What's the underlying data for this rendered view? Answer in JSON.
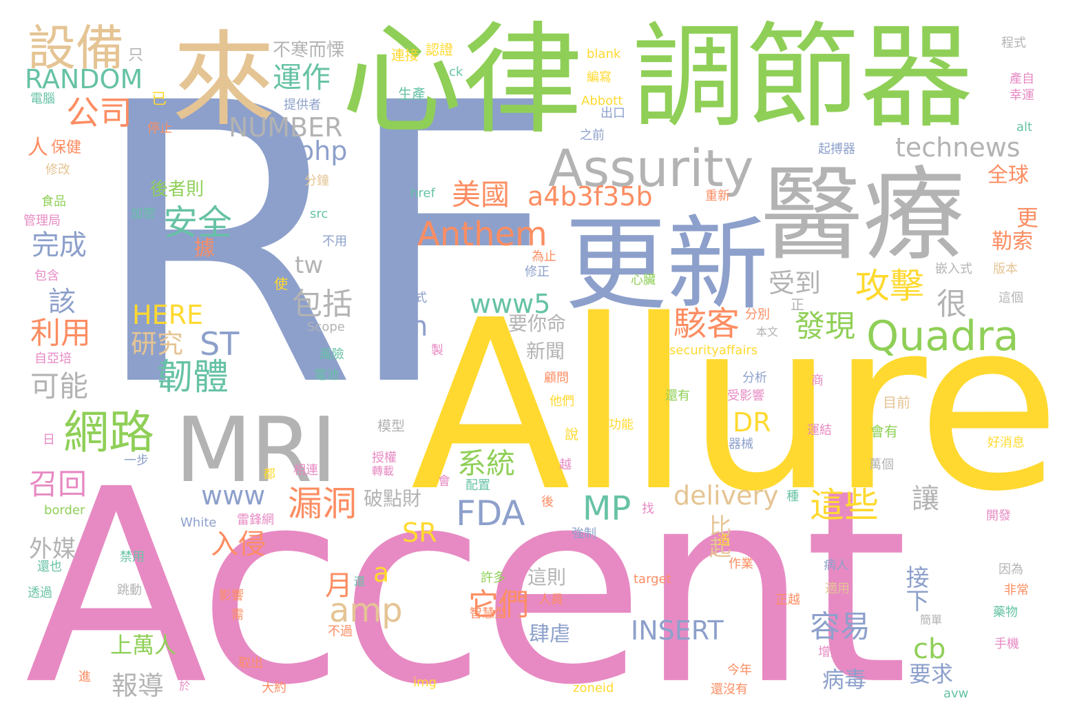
{
  "colors": {
    "background": "#ffffff",
    "green": "#8fcf57",
    "blue": "#8da0cb",
    "pink": "#e78ac3",
    "yellow": "#ffd92f",
    "tan": "#e5c494",
    "gray": "#b3b3b3",
    "orange": "#fc8d62",
    "teal": "#66c2a5"
  },
  "words": [
    {
      "text": "RF",
      "color": "blue"
    },
    {
      "text": "Accent",
      "color": "pink"
    },
    {
      "text": "Allure",
      "color": "yellow"
    },
    {
      "text": "心律",
      "color": "green"
    },
    {
      "text": "調節器",
      "color": "green"
    },
    {
      "text": "醫療",
      "color": "gray"
    },
    {
      "text": "更新",
      "color": "blue"
    },
    {
      "text": "來",
      "color": "tan"
    },
    {
      "text": "MRI",
      "color": "gray"
    },
    {
      "text": "Assurity",
      "color": "gray"
    },
    {
      "text": "設備",
      "color": "tan"
    },
    {
      "text": "Quadra",
      "color": "green"
    },
    {
      "text": "Anthem",
      "color": "orange"
    },
    {
      "text": "網路",
      "color": "green"
    },
    {
      "text": "technews",
      "color": "gray"
    },
    {
      "text": "a4b3f35b",
      "color": "orange"
    },
    {
      "text": "RANDOM",
      "color": "teal"
    },
    {
      "text": "NUMBER",
      "color": "gray"
    },
    {
      "text": "安全",
      "color": "teal"
    },
    {
      "text": "美國",
      "color": "orange"
    },
    {
      "text": "公司",
      "color": "orange"
    },
    {
      "text": "運作",
      "color": "teal"
    },
    {
      "text": "攻擊",
      "color": "yellow"
    },
    {
      "text": "駭客",
      "color": "orange"
    },
    {
      "text": "FDA",
      "color": "blue"
    },
    {
      "text": "MP",
      "color": "teal"
    },
    {
      "text": "漏洞",
      "color": "orange"
    },
    {
      "text": "韌體",
      "color": "teal"
    },
    {
      "text": "delivery",
      "color": "tan"
    },
    {
      "text": "INSERT",
      "color": "blue"
    },
    {
      "text": "amp",
      "color": "tan"
    },
    {
      "text": "www5",
      "color": "teal"
    },
    {
      "text": "php",
      "color": "blue"
    },
    {
      "text": "ST",
      "color": "blue"
    },
    {
      "text": "這些",
      "color": "yellow"
    },
    {
      "text": "HERE",
      "color": "yellow"
    },
    {
      "text": "DR",
      "color": "yellow"
    },
    {
      "text": "SR",
      "color": "yellow"
    },
    {
      "text": "www",
      "color": "blue"
    },
    {
      "text": "系統",
      "color": "green"
    },
    {
      "text": "研究",
      "color": "tan"
    },
    {
      "text": "包括",
      "color": "gray"
    },
    {
      "text": "容易",
      "color": "blue"
    },
    {
      "text": "它們",
      "color": "orange"
    },
    {
      "text": "發現",
      "color": "green"
    },
    {
      "text": "受到",
      "color": "gray"
    },
    {
      "text": "完成",
      "color": "blue"
    },
    {
      "text": "利用",
      "color": "orange"
    },
    {
      "text": "可能",
      "color": "gray"
    },
    {
      "text": "召回",
      "color": "pink"
    },
    {
      "text": "報導",
      "color": "gray"
    },
    {
      "text": "上萬人",
      "color": "green"
    },
    {
      "text": "後者則",
      "color": "green"
    },
    {
      "text": "入侵",
      "color": "orange"
    },
    {
      "text": "tw",
      "color": "gray"
    },
    {
      "text": "cb",
      "color": "green"
    },
    {
      "text": "破點財",
      "color": "gray"
    },
    {
      "text": "要你命",
      "color": "gray"
    },
    {
      "text": "新聞",
      "color": "gray"
    },
    {
      "text": "這則",
      "color": "gray"
    },
    {
      "text": "肆虐",
      "color": "blue"
    },
    {
      "text": "病毒",
      "color": "blue"
    },
    {
      "text": "要求",
      "color": "blue"
    },
    {
      "text": "不寒而慄",
      "color": "gray"
    },
    {
      "text": "很",
      "color": "gray"
    },
    {
      "text": "該",
      "color": "blue"
    },
    {
      "text": "月",
      "color": "orange"
    },
    {
      "text": "a",
      "color": "yellow"
    },
    {
      "text": "n",
      "color": "blue"
    },
    {
      "text": "外媒",
      "color": "gray"
    },
    {
      "text": "比起",
      "color": "tan"
    },
    {
      "text": "讓",
      "color": "gray"
    },
    {
      "text": "接下",
      "color": "blue"
    },
    {
      "text": "全球",
      "color": "orange"
    },
    {
      "text": "更",
      "color": "orange"
    },
    {
      "text": "勒索",
      "color": "orange"
    },
    {
      "text": "人",
      "color": "orange"
    },
    {
      "text": "保健",
      "color": "orange"
    },
    {
      "text": "據",
      "color": "orange"
    },
    {
      "text": "只",
      "color": "gray"
    },
    {
      "text": "已",
      "color": "yellow"
    },
    {
      "text": "電腦",
      "color": "teal"
    },
    {
      "text": "停止",
      "color": "orange"
    },
    {
      "text": "修改",
      "color": "tan"
    },
    {
      "text": "食品",
      "color": "green"
    },
    {
      "text": "管理局",
      "color": "pink"
    },
    {
      "text": "包含",
      "color": "pink"
    },
    {
      "text": "自亞培",
      "color": "pink"
    },
    {
      "text": "加密",
      "color": "teal"
    },
    {
      "text": "裝置",
      "color": "blue"
    },
    {
      "text": "分鐘",
      "color": "tan"
    },
    {
      "text": "src",
      "color": "teal"
    },
    {
      "text": "不用",
      "color": "blue"
    },
    {
      "text": "href",
      "color": "teal"
    },
    {
      "text": "使",
      "color": "yellow"
    },
    {
      "text": "模式",
      "color": "blue"
    },
    {
      "text": "Scope",
      "color": "gray"
    },
    {
      "text": "風險",
      "color": "teal"
    },
    {
      "text": "電池",
      "color": "teal"
    },
    {
      "text": "提供者",
      "color": "blue"
    },
    {
      "text": "生產",
      "color": "teal"
    },
    {
      "text": "連接",
      "color": "yellow"
    },
    {
      "text": "認證",
      "color": "yellow"
    },
    {
      "text": "ck",
      "color": "teal"
    },
    {
      "text": "blank",
      "color": "yellow"
    },
    {
      "text": "編寫",
      "color": "yellow"
    },
    {
      "text": "Abbott",
      "color": "yellow"
    },
    {
      "text": "出口",
      "color": "blue"
    },
    {
      "text": "醫院",
      "color": "blue"
    },
    {
      "text": "之前",
      "color": "blue"
    },
    {
      "text": "起搏器",
      "color": "blue"
    },
    {
      "text": "重新",
      "color": "orange"
    },
    {
      "text": "為止",
      "color": "orange"
    },
    {
      "text": "修正",
      "color": "blue"
    },
    {
      "text": "心臟",
      "color": "green"
    },
    {
      "text": "嵌入式",
      "color": "gray"
    },
    {
      "text": "版本",
      "color": "tan"
    },
    {
      "text": "這個",
      "color": "gray"
    },
    {
      "text": "正",
      "color": "gray"
    },
    {
      "text": "分別",
      "color": "orange"
    },
    {
      "text": "本文",
      "color": "gray"
    },
    {
      "text": "securityaffairs",
      "color": "yellow"
    },
    {
      "text": "分析",
      "color": "blue"
    },
    {
      "text": "商",
      "color": "pink"
    },
    {
      "text": "顧問",
      "color": "orange"
    },
    {
      "text": "他們",
      "color": "yellow"
    },
    {
      "text": "還有",
      "color": "green"
    },
    {
      "text": "受影響",
      "color": "pink"
    },
    {
      "text": "目前",
      "color": "tan"
    },
    {
      "text": "功能",
      "color": "yellow"
    },
    {
      "text": "運結",
      "color": "pink"
    },
    {
      "text": "會有",
      "color": "green"
    },
    {
      "text": "器械",
      "color": "blue"
    },
    {
      "text": "好消息",
      "color": "yellow"
    },
    {
      "text": "萬個",
      "color": "gray"
    },
    {
      "text": "說",
      "color": "yellow"
    },
    {
      "text": "越",
      "color": "pink"
    },
    {
      "text": "模型",
      "color": "gray"
    },
    {
      "text": "授權",
      "color": "pink"
    },
    {
      "text": "轉載",
      "color": "pink"
    },
    {
      "text": "相連",
      "color": "pink"
    },
    {
      "text": "都",
      "color": "yellow"
    },
    {
      "text": "一步",
      "color": "blue"
    },
    {
      "text": "日",
      "color": "pink"
    },
    {
      "text": "配置",
      "color": "teal"
    },
    {
      "text": "會",
      "color": "pink"
    },
    {
      "text": "後",
      "color": "orange"
    },
    {
      "text": "種",
      "color": "teal"
    },
    {
      "text": "開發",
      "color": "pink"
    },
    {
      "text": "找",
      "color": "pink"
    },
    {
      "text": "強制",
      "color": "blue"
    },
    {
      "text": "雷鋒網",
      "color": "pink"
    },
    {
      "text": "White",
      "color": "blue"
    },
    {
      "text": "border",
      "color": "green"
    },
    {
      "text": "造",
      "color": "yellow"
    },
    {
      "text": "作業",
      "color": "orange"
    },
    {
      "text": "禁用",
      "color": "teal"
    },
    {
      "text": "還也",
      "color": "teal"
    },
    {
      "text": "不同",
      "color": "pink"
    },
    {
      "text": "影響",
      "color": "orange"
    },
    {
      "text": "許多",
      "color": "green"
    },
    {
      "text": "target",
      "color": "orange"
    },
    {
      "text": "病人",
      "color": "blue"
    },
    {
      "text": "因為",
      "color": "gray"
    },
    {
      "text": "適用",
      "color": "tan"
    },
    {
      "text": "非常",
      "color": "orange"
    },
    {
      "text": "藥物",
      "color": "teal"
    },
    {
      "text": "跳動",
      "color": "gray"
    },
    {
      "text": "透過",
      "color": "teal"
    },
    {
      "text": "還",
      "color": "teal"
    },
    {
      "text": "需",
      "color": "orange"
    },
    {
      "text": "人員",
      "color": "orange"
    },
    {
      "text": "正越",
      "color": "orange"
    },
    {
      "text": "智慧型",
      "color": "orange"
    },
    {
      "text": "不過",
      "color": "orange"
    },
    {
      "text": "簡單",
      "color": "gray"
    },
    {
      "text": "手機",
      "color": "pink"
    },
    {
      "text": "增加",
      "color": "pink"
    },
    {
      "text": "今年",
      "color": "orange"
    },
    {
      "text": "還沒有",
      "color": "orange"
    },
    {
      "text": "取出",
      "color": "orange"
    },
    {
      "text": "大約",
      "color": "orange"
    },
    {
      "text": "於",
      "color": "pink"
    },
    {
      "text": "進",
      "color": "orange"
    },
    {
      "text": "img",
      "color": "yellow"
    },
    {
      "text": "zoneid",
      "color": "yellow"
    },
    {
      "text": "avw",
      "color": "teal"
    },
    {
      "text": "程式",
      "color": "gray"
    },
    {
      "text": "產自",
      "color": "pink"
    },
    {
      "text": "幸運",
      "color": "pink"
    },
    {
      "text": "alt",
      "color": "teal"
    },
    {
      "text": "製",
      "color": "pink"
    }
  ]
}
